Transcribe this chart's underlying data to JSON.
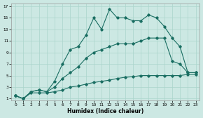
{
  "xlabel": "Humidex (Indice chaleur)",
  "bg_color": "#cce8e3",
  "grid_color": "#aad4cc",
  "line_color": "#1a6e62",
  "xlim_min": 0,
  "xlim_max": 23,
  "ylim_min": 1,
  "ylim_max": 17,
  "xticks": [
    0,
    1,
    2,
    3,
    4,
    5,
    6,
    7,
    8,
    9,
    10,
    11,
    12,
    13,
    14,
    15,
    16,
    17,
    18,
    19,
    20,
    21,
    22,
    23
  ],
  "yticks": [
    1,
    3,
    5,
    7,
    9,
    11,
    13,
    15,
    17
  ],
  "curve1_x": [
    0,
    1,
    2,
    3,
    4,
    5,
    6,
    7,
    8,
    9,
    10,
    11,
    12,
    13,
    14,
    15,
    16,
    17,
    18,
    19,
    20,
    21,
    22,
    23
  ],
  "curve1_y": [
    1.5,
    1,
    2,
    2,
    2,
    2.2,
    2.5,
    3,
    3.2,
    3.5,
    3.8,
    4,
    4.2,
    4.5,
    4.7,
    4.8,
    5,
    5,
    5,
    5,
    5,
    5,
    5.2,
    5.2
  ],
  "curve2_x": [
    0,
    1,
    2,
    3,
    4,
    5,
    6,
    7,
    8,
    9,
    10,
    11,
    12,
    13,
    14,
    15,
    16,
    17,
    18,
    19,
    20,
    21,
    22,
    23
  ],
  "curve2_y": [
    1.5,
    1,
    2.2,
    2.5,
    2.2,
    3,
    4.5,
    5.5,
    6.5,
    8,
    9,
    9.5,
    10,
    10.5,
    10.5,
    10.5,
    11,
    11.5,
    11.5,
    11.5,
    7.5,
    7,
    5.5,
    5.5
  ],
  "curve3_x": [
    0,
    1,
    2,
    3,
    4,
    5,
    6,
    7,
    8,
    9,
    10,
    11,
    12,
    13,
    14,
    15,
    16,
    17,
    18,
    19,
    20,
    21,
    22,
    23
  ],
  "curve3_y": [
    1.5,
    1,
    2.2,
    2.5,
    2.2,
    4,
    7,
    9.5,
    10,
    12,
    15,
    13,
    16.5,
    15,
    15,
    14.5,
    14.5,
    15.5,
    15,
    13.5,
    11.5,
    10,
    5.5,
    5.5
  ]
}
